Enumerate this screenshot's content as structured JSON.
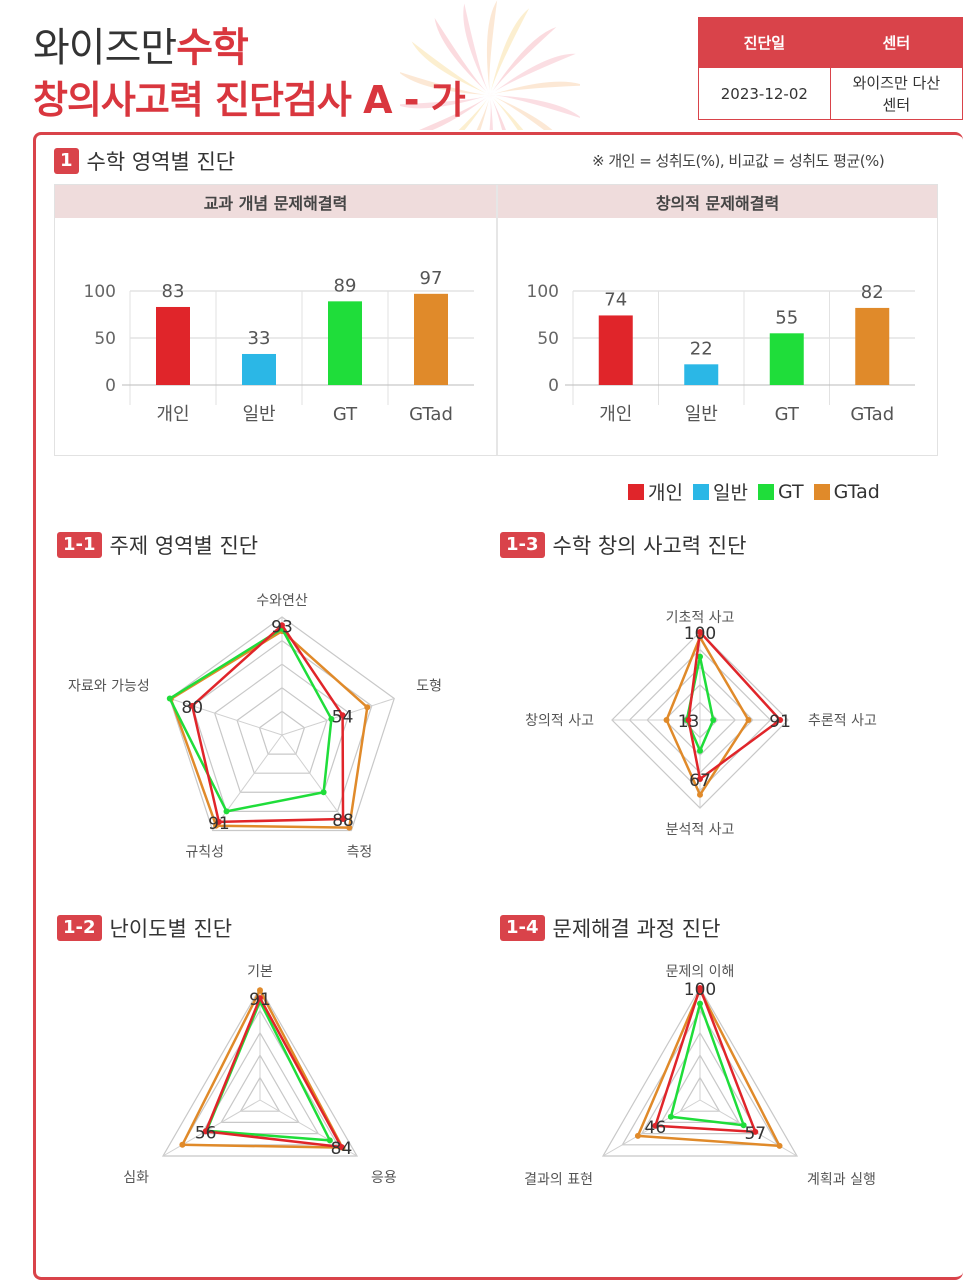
{
  "header": {
    "title_part1": "와이즈만",
    "title_part1_accent": "수학",
    "title_line2": "창의사고력 진단검사 A - 가",
    "meta": {
      "date_header": "진단일",
      "center_header": "센터",
      "date_value": "2023-12-02",
      "center_value_line1": "와이즈만 다산",
      "center_value_line2": "센터"
    }
  },
  "section1": {
    "number": "1",
    "title": "수학 영역별 진단",
    "note": "※ 개인 = 성취도(%), 비교값 = 성취도 평균(%)"
  },
  "legend": [
    {
      "label": "개인",
      "color": "#e0252a"
    },
    {
      "label": "일반",
      "color": "#2bb7e6"
    },
    {
      "label": "GT",
      "color": "#1fdd3a"
    },
    {
      "label": "GTad",
      "color": "#e08a2a"
    }
  ],
  "sub_sections": {
    "s11": {
      "number": "1-1",
      "title": "주제 영역별 진단"
    },
    "s12": {
      "number": "1-2",
      "title": "난이도별 진단"
    },
    "s13": {
      "number": "1-3",
      "title": "수학 창의 사고력 진단"
    },
    "s14": {
      "number": "1-4",
      "title": "문제해결 과정 진단"
    }
  },
  "chart_data": [
    {
      "type": "bar",
      "title": "교과 개념 문제해결력",
      "categories": [
        "개인",
        "일반",
        "GT",
        "GTad"
      ],
      "values": [
        83,
        33,
        89,
        97
      ],
      "colors": [
        "#e0252a",
        "#2bb7e6",
        "#1fdd3a",
        "#e08a2a"
      ],
      "ylim": [
        0,
        100
      ],
      "yticks": [
        0,
        50,
        100
      ]
    },
    {
      "type": "bar",
      "title": "창의적 문제해결력",
      "categories": [
        "개인",
        "일반",
        "GT",
        "GTad"
      ],
      "values": [
        74,
        22,
        55,
        82
      ],
      "colors": [
        "#e0252a",
        "#2bb7e6",
        "#1fdd3a",
        "#e08a2a"
      ],
      "ylim": [
        0,
        100
      ],
      "yticks": [
        0,
        50,
        100
      ]
    },
    {
      "type": "radar",
      "axes": [
        "수와연산",
        "도형",
        "측정",
        "규칙성",
        "자료와 가능성"
      ],
      "rmax": 100,
      "series": [
        {
          "name": "개인",
          "values": [
            93,
            54,
            88,
            91,
            80
          ],
          "color": "#e0252a"
        },
        {
          "name": "GT",
          "values": [
            90,
            44,
            60,
            80,
            100
          ],
          "color": "#1fdd3a"
        },
        {
          "name": "GTad",
          "values": [
            88,
            76,
            97,
            95,
            99
          ],
          "color": "#e08a2a"
        }
      ],
      "point_labels": [
        93,
        54,
        88,
        91,
        80
      ]
    },
    {
      "type": "radar",
      "axes": [
        "기본",
        "응용",
        "심화"
      ],
      "rmax": 100,
      "series": [
        {
          "name": "개인",
          "values": [
            91,
            84,
            56
          ],
          "color": "#e0252a"
        },
        {
          "name": "GT",
          "values": [
            88,
            72,
            55
          ],
          "color": "#1fdd3a"
        },
        {
          "name": "GTad",
          "values": [
            98,
            85,
            80
          ],
          "color": "#e08a2a"
        }
      ],
      "point_labels": [
        91,
        84,
        56
      ]
    },
    {
      "type": "radar",
      "axes": [
        "기초적 사고",
        "추론적 사고",
        "분석적 사고",
        "창의적 사고"
      ],
      "rmax": 100,
      "series": [
        {
          "name": "개인",
          "values": [
            100,
            91,
            67,
            13
          ],
          "color": "#e0252a"
        },
        {
          "name": "GT",
          "values": [
            72,
            15,
            35,
            15
          ],
          "color": "#1fdd3a"
        },
        {
          "name": "GTad",
          "values": [
            94,
            55,
            85,
            38
          ],
          "color": "#e08a2a"
        }
      ],
      "point_labels": [
        100,
        91,
        67,
        13
      ]
    },
    {
      "type": "radar",
      "axes": [
        "문제의 이해",
        "계획과 실행",
        "결과의 표현"
      ],
      "rmax": 100,
      "series": [
        {
          "name": "개인",
          "values": [
            100,
            57,
            46
          ],
          "color": "#e0252a"
        },
        {
          "name": "GT",
          "values": [
            86,
            45,
            30
          ],
          "color": "#1fdd3a"
        },
        {
          "name": "GTad",
          "values": [
            98,
            82,
            64
          ],
          "color": "#e08a2a"
        }
      ],
      "point_labels": [
        100,
        57,
        46
      ]
    }
  ]
}
